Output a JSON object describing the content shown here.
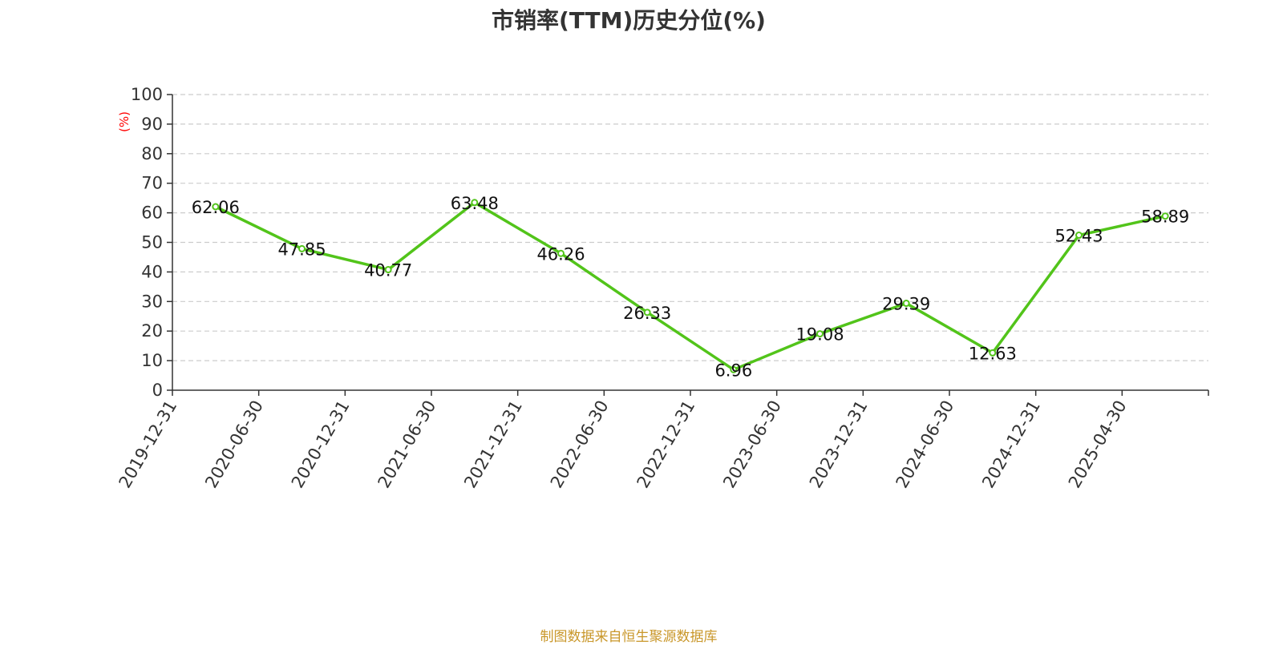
{
  "colors": {
    "line": "#52c41a",
    "unit": "#ff0000",
    "footer": "#c9972a",
    "grid": "#cccccc",
    "axis": "#333333"
  },
  "footer": "制图数据来自恒生聚源数据库",
  "chart_data": {
    "type": "line",
    "title": "市销率(TTM)历史分位(%)",
    "ylabel": "(%)",
    "xlabel": "",
    "ylim": [
      0,
      100
    ],
    "yticks": [
      0,
      10,
      20,
      30,
      40,
      50,
      60,
      70,
      80,
      90,
      100
    ],
    "grid": true,
    "categories": [
      "2019-12-31",
      "2020-06-30",
      "2020-12-31",
      "2021-06-30",
      "2021-12-31",
      "2022-06-30",
      "2022-12-31",
      "2023-06-30",
      "2023-12-31",
      "2024-06-30",
      "2024-12-31",
      "2025-04-30"
    ],
    "values": [
      62.06,
      47.85,
      40.77,
      63.48,
      46.26,
      26.33,
      6.96,
      19.08,
      29.39,
      12.63,
      52.43,
      58.89
    ],
    "value_labels": [
      "62.06",
      "47.85",
      "40.77",
      "63.48",
      "46.26",
      "26.33",
      "6.96",
      "19.08",
      "29.39",
      "12.63",
      "52.43",
      "58.89"
    ]
  }
}
